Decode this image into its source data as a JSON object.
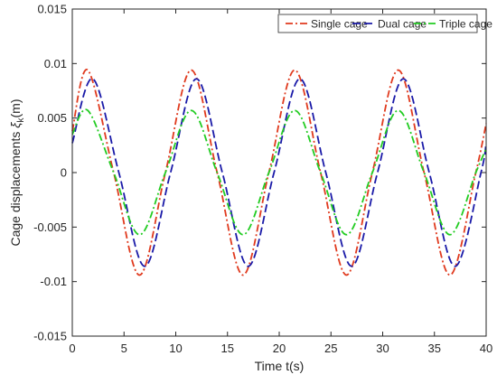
{
  "chart_data": {
    "type": "line",
    "title": "",
    "xlabel": "Time t(s)",
    "ylabel_prefix": "Cage displacements ",
    "ylabel_symbol": "ξ",
    "ylabel_subscript": "k",
    "ylabel_suffix": "(m)",
    "xlim": [
      0,
      40
    ],
    "ylim": [
      -0.015,
      0.015
    ],
    "x_ticks": [
      0,
      5,
      10,
      15,
      20,
      25,
      30,
      35,
      40
    ],
    "x_tick_labels": [
      "0",
      "5",
      "10",
      "15",
      "20",
      "25",
      "30",
      "35",
      "40"
    ],
    "y_ticks": [
      -0.015,
      -0.01,
      -0.005,
      0,
      0.005,
      0.01,
      0.015
    ],
    "y_tick_labels": [
      "-0.015",
      "-0.01",
      "-0.005",
      "0",
      "0.005",
      "0.01",
      "0.015"
    ],
    "grid": false,
    "legend_position": "top-right",
    "series": [
      {
        "name": "Single cage",
        "color": "#e03a1e",
        "dash": "dash-dot",
        "x": [
          0,
          1.5,
          4,
          6.5,
          9,
          11.5,
          14,
          16.5,
          19,
          21.5,
          24,
          26.5,
          29,
          31.5,
          34,
          36.5,
          39,
          40
        ],
        "y": [
          0.0038,
          0.0094,
          0.0,
          -0.0094,
          0.0,
          0.0094,
          0.0,
          -0.0094,
          0.0,
          0.0094,
          0.0,
          -0.0094,
          0.0,
          0.0094,
          0.0,
          -0.0094,
          0.0,
          0.0045
        ]
      },
      {
        "name": "Dual cage",
        "color": "#1a1aa8",
        "dash": "dash",
        "x": [
          0,
          2,
          4.5,
          7,
          9.5,
          12,
          14.5,
          17,
          19.5,
          22,
          24.5,
          27,
          29.5,
          32,
          34.5,
          37,
          39.5,
          40
        ],
        "y": [
          0.0027,
          0.0086,
          0.0,
          -0.0086,
          0.0,
          0.0086,
          0.0,
          -0.0086,
          0.0,
          0.0086,
          0.0,
          -0.0086,
          0.0,
          0.0086,
          0.0,
          -0.0086,
          0.0,
          0.0027
        ]
      },
      {
        "name": "Triple cage",
        "color": "#22cc22",
        "dash": "dash-dot",
        "x": [
          0,
          1.5,
          4,
          6.5,
          9,
          11.5,
          14,
          16.5,
          19,
          21.5,
          24,
          26.5,
          29,
          31.5,
          34,
          36.5,
          39,
          40
        ],
        "y": [
          0.0035,
          0.0057,
          0.0,
          -0.0057,
          0.0,
          0.0057,
          0.0,
          -0.0057,
          0.0,
          0.0057,
          0.0,
          -0.0057,
          0.0,
          0.0057,
          0.0,
          -0.0057,
          0.0,
          0.0022
        ]
      }
    ]
  }
}
